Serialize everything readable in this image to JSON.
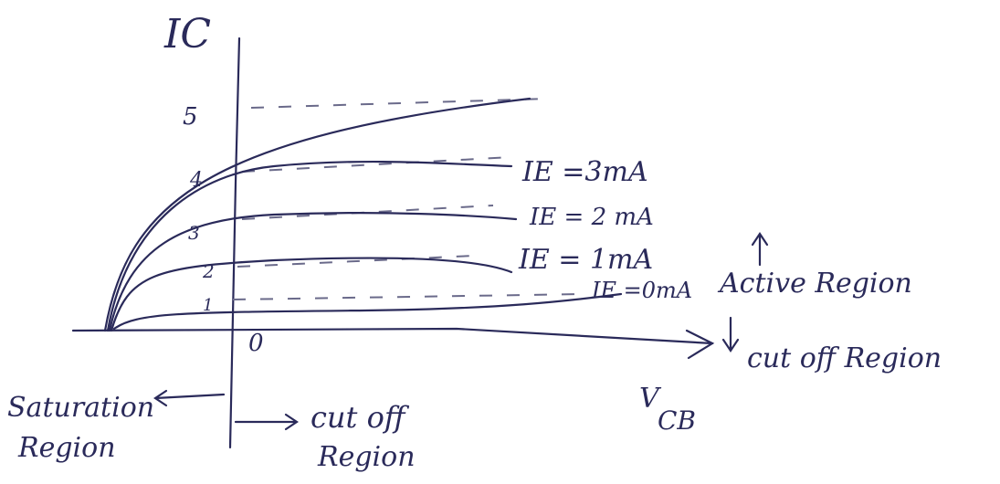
{
  "axes": {
    "y_label": "IC",
    "x_label": {
      "main": "V",
      "sub": "CB"
    },
    "origin": "0",
    "ticks": [
      "5",
      "4",
      "3",
      "2",
      "1"
    ]
  },
  "curves": [
    {
      "label": "IE =3mA"
    },
    {
      "label": "IE = 2 mA"
    },
    {
      "label": "IE = 1mA"
    },
    {
      "label": "IE =0mA"
    }
  ],
  "regions": {
    "active": "Active Region",
    "cutoff_right": "cut off Region",
    "saturation": [
      "Saturation",
      "Region"
    ],
    "cutoff_bottom": [
      "cut off",
      "Region"
    ]
  }
}
